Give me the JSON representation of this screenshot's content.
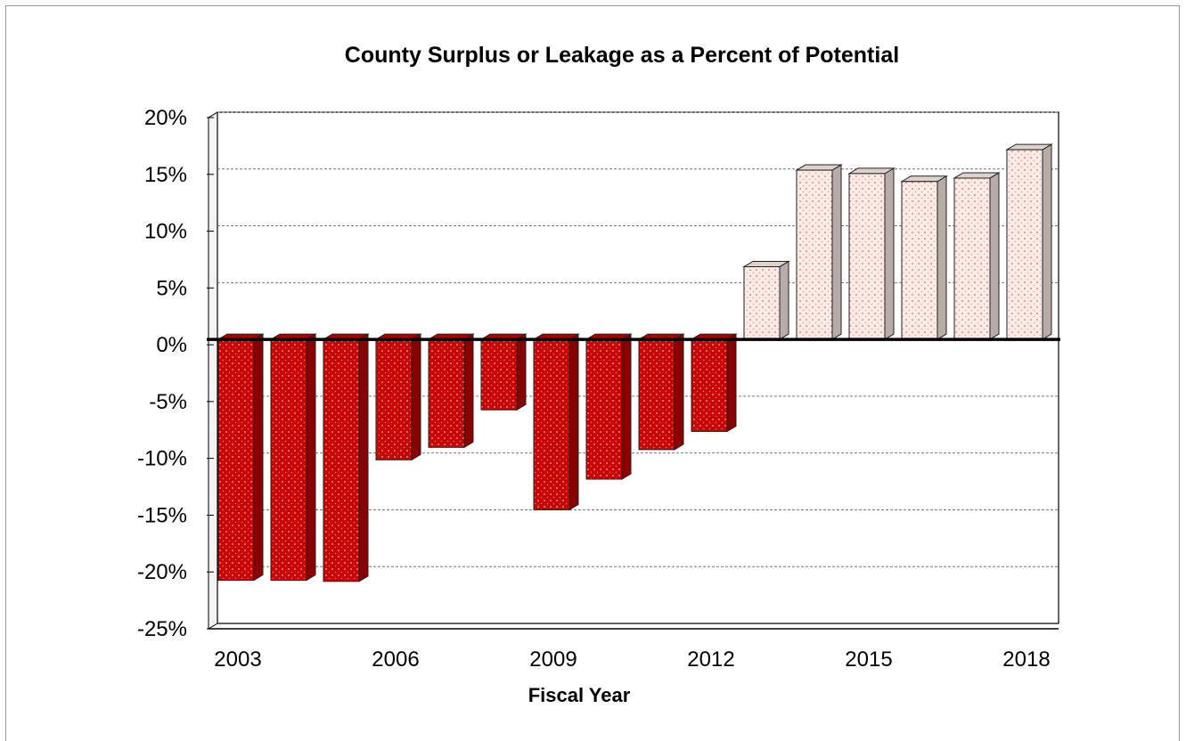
{
  "chart_data": {
    "type": "bar",
    "title": "County Surplus or Leakage as a Percent of Potential",
    "xlabel": "Fiscal Year",
    "ylabel": "",
    "categories": [
      "2003",
      "2004",
      "2005",
      "2006",
      "2007",
      "2008",
      "2009",
      "2010",
      "2011",
      "2012",
      "2013",
      "2014",
      "2015",
      "2016",
      "2017",
      "2018"
    ],
    "values": [
      -21.2,
      -21.2,
      -21.3,
      -10.6,
      -9.5,
      -6.2,
      -15.0,
      -12.3,
      -9.7,
      -8.1,
      6.4,
      14.9,
      14.6,
      13.9,
      14.2,
      16.7
    ],
    "x_tick_labels": [
      "2003",
      "2006",
      "2009",
      "2012",
      "2015",
      "2018"
    ],
    "y_tick_labels": [
      "20%",
      "15%",
      "10%",
      "5%",
      "0%",
      "-5%",
      "-10%",
      "-15%",
      "-20%",
      "-25%"
    ],
    "ylim": [
      -25,
      20
    ],
    "grid": true,
    "colors": {
      "negative": "#c00000",
      "positive": "#f8e8e4",
      "positive_dots": "#e06060"
    }
  }
}
